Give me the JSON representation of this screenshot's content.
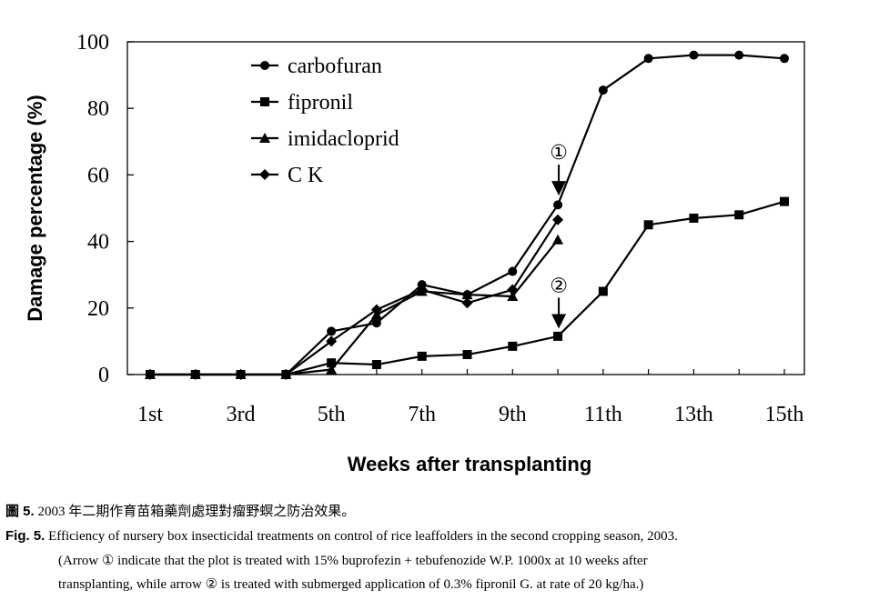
{
  "chart_data": {
    "type": "line",
    "xlabel": "Weeks after transplanting",
    "ylabel": "Damage percentage (%)",
    "ylim": [
      0,
      100
    ],
    "xlim": [
      1,
      15
    ],
    "y_ticks": [
      "0",
      "20",
      "40",
      "60",
      "80",
      "100"
    ],
    "x_ticks": [
      "1st",
      "3rd",
      "5th",
      "7th",
      "9th",
      "11th",
      "13th",
      "15th"
    ],
    "legend_position": "top-left",
    "grid": false,
    "series": [
      {
        "name": "carbofuran",
        "marker": "circle",
        "x": [
          1,
          2,
          3,
          4,
          5,
          6,
          7,
          8,
          9,
          10,
          11,
          12,
          13,
          14,
          15
        ],
        "values": [
          0,
          0,
          0,
          0,
          13,
          15.5,
          27,
          24,
          31,
          51,
          85.5,
          95,
          96,
          96,
          95
        ]
      },
      {
        "name": "fipronil",
        "marker": "square",
        "x": [
          1,
          2,
          3,
          4,
          5,
          6,
          7,
          8,
          9,
          10,
          11,
          12,
          13,
          14,
          15
        ],
        "values": [
          0,
          0,
          0,
          0,
          3.5,
          3,
          5.5,
          6,
          8.5,
          11.5,
          25,
          45,
          47,
          48,
          52
        ]
      },
      {
        "name": "imidacloprid",
        "marker": "triangle",
        "x": [
          1,
          2,
          3,
          4,
          5,
          6,
          7,
          8,
          9,
          10
        ],
        "values": [
          0,
          0,
          0,
          0,
          1.5,
          18,
          25,
          24,
          23.5,
          40.5
        ]
      },
      {
        "name": "C K",
        "marker": "diamond",
        "x": [
          1,
          2,
          3,
          4,
          5,
          6,
          7,
          8,
          9,
          10
        ],
        "values": [
          0,
          0,
          0,
          0,
          10,
          19.5,
          25.5,
          21.5,
          25.5,
          46.5
        ]
      }
    ],
    "annotations": [
      {
        "label": "①",
        "x": 10,
        "y": 62
      },
      {
        "label": "②",
        "x": 10,
        "y": 22
      }
    ]
  },
  "caption": {
    "zh_head": "圖 5.",
    "zh_text": " 2003 年二期作育苗箱藥劑處理對瘤野螟之防治效果。",
    "en_head": "Fig. 5.",
    "en_text": "Efficiency of nursery box insecticidal treatments on control of rice leaffolders in the second cropping season, 2003.",
    "note_line1": "(Arrow ① indicate that the plot is treated with 15% buprofezin + tebufenozide W.P. 1000x at 10 weeks after",
    "note_line2": "transplanting, while arrow ② is treated with submerged application of 0.3% fipronil G. at rate of 20 kg/ha.)"
  }
}
